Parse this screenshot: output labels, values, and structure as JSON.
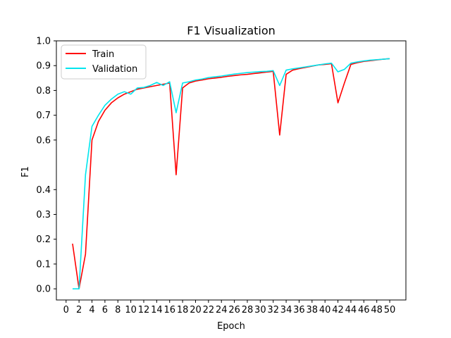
{
  "chart_data": {
    "type": "line",
    "title": "F1 Visualization",
    "xlabel": "Epoch",
    "ylabel": "F1",
    "xlim": [
      -1.5,
      52.5
    ],
    "ylim": [
      -0.045,
      1.0
    ],
    "xticks": [
      0,
      2,
      4,
      6,
      8,
      10,
      12,
      14,
      16,
      18,
      20,
      22,
      24,
      26,
      28,
      30,
      32,
      34,
      36,
      38,
      40,
      42,
      44,
      46,
      48,
      50
    ],
    "xtick_labels": [
      "0",
      "2",
      "4",
      "6",
      "8",
      "10",
      "12",
      "14",
      "16",
      "18",
      "20",
      "22",
      "24",
      "26",
      "28",
      "30",
      "32",
      "34",
      "36",
      "38",
      "40",
      "42",
      "44",
      "46",
      "48",
      "50"
    ],
    "yticks": [
      0.0,
      0.1,
      0.2,
      0.3,
      0.4,
      0.6,
      0.7,
      0.8,
      0.9,
      1.0
    ],
    "ytick_labels": [
      "0.0",
      "0.1",
      "0.2",
      "0.3",
      "0.4",
      "0.6",
      "0.7",
      "0.8",
      "0.9",
      "1.0"
    ],
    "grid": false,
    "legend": {
      "location": "upper-left",
      "entries": [
        "Train",
        "Validation"
      ]
    },
    "x": [
      1,
      2,
      3,
      4,
      5,
      6,
      7,
      8,
      9,
      10,
      11,
      12,
      13,
      14,
      15,
      16,
      17,
      18,
      19,
      20,
      21,
      22,
      23,
      24,
      25,
      26,
      27,
      28,
      29,
      30,
      31,
      32,
      33,
      34,
      35,
      36,
      37,
      38,
      39,
      40,
      41,
      42,
      43,
      44,
      45,
      46,
      47,
      48,
      49,
      50
    ],
    "series": [
      {
        "name": "Train",
        "color": "#ff0000",
        "values": [
          0.182,
          0.0,
          0.14,
          0.6,
          0.675,
          0.72,
          0.75,
          0.77,
          0.785,
          0.795,
          0.805,
          0.81,
          0.815,
          0.82,
          0.825,
          0.83,
          0.46,
          0.81,
          0.83,
          0.838,
          0.842,
          0.847,
          0.85,
          0.853,
          0.857,
          0.86,
          0.863,
          0.865,
          0.868,
          0.871,
          0.874,
          0.877,
          0.62,
          0.865,
          0.882,
          0.888,
          0.893,
          0.898,
          0.903,
          0.905,
          0.908,
          0.75,
          0.83,
          0.905,
          0.912,
          0.917,
          0.92,
          0.923,
          0.926,
          0.928
        ]
      },
      {
        "name": "Validation",
        "color": "#00e5ee",
        "values": [
          0.0,
          0.0,
          0.46,
          0.655,
          0.7,
          0.74,
          0.765,
          0.785,
          0.795,
          0.785,
          0.81,
          0.812,
          0.82,
          0.832,
          0.82,
          0.835,
          0.71,
          0.83,
          0.835,
          0.842,
          0.846,
          0.852,
          0.855,
          0.858,
          0.862,
          0.866,
          0.869,
          0.872,
          0.874,
          0.876,
          0.877,
          0.88,
          0.82,
          0.882,
          0.887,
          0.891,
          0.895,
          0.899,
          0.903,
          0.907,
          0.91,
          0.875,
          0.885,
          0.91,
          0.915,
          0.919,
          0.922,
          0.924,
          0.926,
          0.928
        ]
      }
    ]
  }
}
